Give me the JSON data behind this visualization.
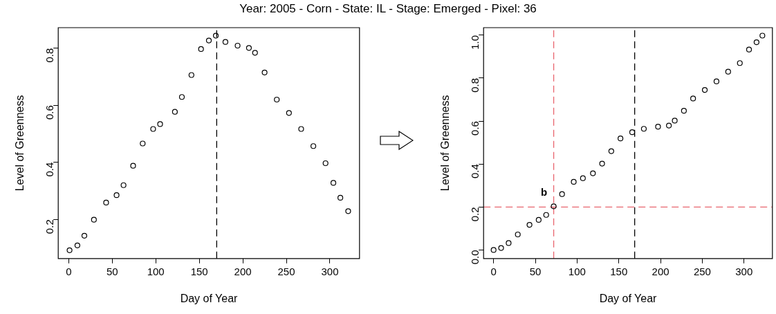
{
  "chart_data": [
    {
      "type": "scatter",
      "title": "Year: 2005 - Corn - State: IL - Stage: Emerged - Pixel: 36",
      "xlabel": "Day of Year",
      "ylabel": "Level of Greenness",
      "marker": "circle",
      "series": [
        {
          "color": "#000000",
          "x": [
            1,
            10,
            18,
            29,
            43,
            55,
            63,
            74,
            85,
            97,
            105,
            122,
            130,
            141,
            152,
            161,
            169,
            180,
            194,
            207,
            214,
            225,
            239,
            253,
            267,
            281,
            295,
            304,
            312,
            321
          ],
          "values": [
            0.092,
            0.109,
            0.143,
            0.199,
            0.259,
            0.285,
            0.32,
            0.388,
            0.466,
            0.517,
            0.534,
            0.577,
            0.629,
            0.706,
            0.797,
            0.827,
            0.844,
            0.822,
            0.809,
            0.801,
            0.784,
            0.715,
            0.62,
            0.573,
            0.517,
            0.457,
            0.397,
            0.328,
            0.276,
            0.229
          ]
        }
      ],
      "xlim": [
        -12,
        334
      ],
      "xticks": [
        0,
        50,
        100,
        150,
        200,
        250,
        300
      ],
      "ylim": [
        0.063,
        0.872
      ],
      "yticks": [
        0.2,
        0.4,
        0.6,
        0.8
      ],
      "ref_lines": [
        {
          "axis": "x",
          "value": 170,
          "color": "#000000",
          "line_style": "dashed"
        }
      ]
    },
    {
      "type": "scatter",
      "xlabel": "Day of Year",
      "ylabel": "Level of Greenness",
      "marker": "circle",
      "annotations": [
        {
          "text": "b",
          "x": 72,
          "y": 0.2
        }
      ],
      "series": [
        {
          "color": "#000000",
          "x": [
            0,
            9,
            18,
            29,
            43,
            54,
            63,
            72,
            82,
            96,
            107,
            119,
            130,
            141,
            152,
            166,
            180,
            197,
            210,
            217,
            228,
            239,
            253,
            267,
            281,
            295,
            306,
            315,
            322
          ],
          "values": [
            0,
            0.009,
            0.032,
            0.072,
            0.117,
            0.14,
            0.163,
            0.203,
            0.26,
            0.317,
            0.334,
            0.357,
            0.402,
            0.46,
            0.519,
            0.548,
            0.564,
            0.574,
            0.579,
            0.602,
            0.648,
            0.705,
            0.745,
            0.785,
            0.83,
            0.87,
            0.933,
            0.967,
            0.998
          ]
        }
      ],
      "xlim": [
        -12,
        334
      ],
      "xticks": [
        0,
        50,
        100,
        150,
        200,
        250,
        300
      ],
      "ylim": [
        -0.04,
        1.035
      ],
      "yticks": [
        {
          "value": 0,
          "label": "0.0"
        },
        {
          "value": 0.2,
          "label": "0.2"
        },
        {
          "value": 0.4,
          "label": "0.4"
        },
        {
          "value": 0.6,
          "label": "0.6"
        },
        {
          "value": 0.8,
          "label": "0.8"
        },
        {
          "value": 1,
          "label": "1.0"
        }
      ],
      "ref_lines": [
        {
          "axis": "x",
          "value": 169,
          "color": "#000000",
          "line_style": "dashed"
        },
        {
          "axis": "x",
          "value": 72,
          "color": "#e8646e",
          "line_style": "dashed"
        },
        {
          "axis": "y",
          "value": 0.2,
          "color": "#e8646e",
          "line_style": "dashed"
        }
      ]
    }
  ]
}
